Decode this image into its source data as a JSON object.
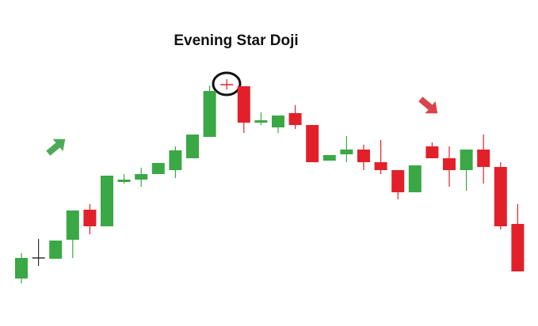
{
  "chart_data": {
    "type": "candlestick",
    "title": "Evening Star Doji",
    "open": [
      60,
      86,
      85,
      109,
      147,
      126,
      182,
      185,
      192,
      197,
      212,
      239,
      305,
      303,
      257,
      251,
      269,
      254,
      209,
      217,
      223,
      207,
      197,
      169,
      227,
      212,
      197,
      223,
      201,
      129
    ],
    "high": [
      92,
      110,
      108,
      146,
      154,
      190,
      192,
      200,
      206,
      227,
      242,
      304,
      312,
      303,
      270,
      266,
      279,
      254,
      216,
      240,
      229,
      235,
      197,
      203,
      232,
      227,
      223,
      242,
      207,
      154
    ],
    "low": [
      54,
      76,
      85,
      86,
      116,
      126,
      180,
      176,
      192,
      187,
      212,
      239,
      299,
      244,
      254,
      244,
      249,
      207,
      209,
      207,
      197,
      192,
      160,
      169,
      212,
      176,
      171,
      180,
      122,
      69
    ],
    "close": [
      86,
      86,
      108,
      146,
      126,
      190,
      185,
      192,
      206,
      222,
      242,
      297,
      305,
      257,
      260,
      266,
      254,
      207,
      216,
      223,
      207,
      197,
      169,
      203,
      212,
      197,
      223,
      201,
      126,
      69
    ],
    "colors": [
      "#3aa845",
      "#333333",
      "#3aa845",
      "#3aa845",
      "#e2202a",
      "#3aa845",
      "#3aa845",
      "#3aa845",
      "#3aa845",
      "#3aa845",
      "#3aa845",
      "#3aa845",
      "#e2202a",
      "#e2202a",
      "#3aa845",
      "#3aa845",
      "#e2202a",
      "#e2202a",
      "#3aa845",
      "#3aa845",
      "#e2202a",
      "#e2202a",
      "#e2202a",
      "#3aa845",
      "#e2202a",
      "#e2202a",
      "#3aa845",
      "#e2202a",
      "#e2202a",
      "#e2202a"
    ],
    "ylim": [
      0,
      412
    ]
  }
}
